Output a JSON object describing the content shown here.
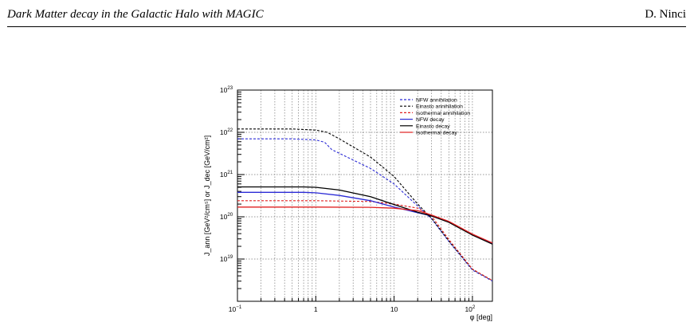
{
  "header": {
    "title": "Dark Matter decay in the Galactic Halo with MAGIC",
    "author": "D. Ninci"
  },
  "chart_data": {
    "type": "line",
    "title": "",
    "xlabel": "φ [deg]",
    "ylabel": "J_ann [GeV²/cm⁵] or J_dec [GeV/cm²]",
    "xscale": "log",
    "yscale": "log",
    "xlim": [
      0.1,
      180
    ],
    "ylim": [
      1e+18,
      1e+23
    ],
    "grid": true,
    "legend_position": "top-right",
    "x_tick_labels": [
      {
        "value": 0.1,
        "base": "10",
        "exp": "−1"
      },
      {
        "value": 1,
        "base": "1",
        "exp": ""
      },
      {
        "value": 10,
        "base": "10",
        "exp": ""
      },
      {
        "value": 100,
        "base": "10",
        "exp": "2"
      }
    ],
    "y_tick_labels": [
      {
        "value": 1e+19,
        "base": "10",
        "exp": "19"
      },
      {
        "value": 1e+20,
        "base": "10",
        "exp": "20"
      },
      {
        "value": 1e+21,
        "base": "10",
        "exp": "21"
      },
      {
        "value": 1e+22,
        "base": "10",
        "exp": "22"
      },
      {
        "value": 1e+23,
        "base": "10",
        "exp": "23"
      }
    ],
    "series": [
      {
        "name": "NFW annihilation",
        "color": "#2b2bd6",
        "dash": true,
        "points": [
          [
            0.1,
            7e+21
          ],
          [
            0.5,
            7e+21
          ],
          [
            1.0,
            6.6e+21
          ],
          [
            1.3,
            5.8e+21
          ],
          [
            1.6,
            3.9e+21
          ],
          [
            2.5,
            2.6e+21
          ],
          [
            5,
            1.4e+21
          ],
          [
            10,
            6e+20
          ],
          [
            20,
            1.8e+20
          ],
          [
            30,
            9e+19
          ],
          [
            50,
            2.6e+19
          ],
          [
            100,
            5.5e+18
          ],
          [
            180,
            3e+18
          ]
        ]
      },
      {
        "name": "Einasto annihilation",
        "color": "#000000",
        "dash": true,
        "points": [
          [
            0.1,
            1.2e+22
          ],
          [
            0.5,
            1.2e+22
          ],
          [
            1.0,
            1.13e+22
          ],
          [
            1.4,
            1e+22
          ],
          [
            2,
            7e+21
          ],
          [
            5,
            2.6e+21
          ],
          [
            10,
            9e+20
          ],
          [
            20,
            2e+20
          ],
          [
            30,
            9.3e+19
          ],
          [
            50,
            2.7e+19
          ],
          [
            100,
            5.7e+18
          ],
          [
            180,
            3.1e+18
          ]
        ]
      },
      {
        "name": "Isothermal annihilation",
        "color": "#e02020",
        "dash": true,
        "points": [
          [
            0.1,
            2.4e+20
          ],
          [
            1,
            2.4e+20
          ],
          [
            5,
            2.3e+20
          ],
          [
            10,
            2e+20
          ],
          [
            20,
            1.6e+20
          ],
          [
            30,
            1.05e+20
          ],
          [
            50,
            2.9e+19
          ],
          [
            100,
            5.8e+18
          ],
          [
            180,
            3.1e+18
          ]
        ]
      },
      {
        "name": "NFW decay",
        "color": "#2b2bd6",
        "dash": false,
        "points": [
          [
            0.1,
            3.8e+20
          ],
          [
            0.7,
            3.8e+20
          ],
          [
            1,
            3.7e+20
          ],
          [
            2,
            3.2e+20
          ],
          [
            5,
            2.4e+20
          ],
          [
            10,
            1.7e+20
          ],
          [
            20,
            1.25e+20
          ],
          [
            30,
            1.05e+20
          ],
          [
            50,
            7.5e+19
          ],
          [
            100,
            3.8e+19
          ],
          [
            180,
            2.3e+19
          ]
        ]
      },
      {
        "name": "Einasto decay",
        "color": "#000000",
        "dash": false,
        "points": [
          [
            0.1,
            5.1e+20
          ],
          [
            0.7,
            5.1e+20
          ],
          [
            1,
            5e+20
          ],
          [
            2,
            4.3e+20
          ],
          [
            5,
            3e+20
          ],
          [
            10,
            1.95e+20
          ],
          [
            20,
            1.28e+20
          ],
          [
            30,
            1.05e+20
          ],
          [
            50,
            7.4e+19
          ],
          [
            100,
            3.7e+19
          ],
          [
            180,
            2.25e+19
          ]
        ]
      },
      {
        "name": "Isothermal decay",
        "color": "#e02020",
        "dash": false,
        "points": [
          [
            0.1,
            1.7e+20
          ],
          [
            1,
            1.7e+20
          ],
          [
            5,
            1.68e+20
          ],
          [
            10,
            1.6e+20
          ],
          [
            20,
            1.4e+20
          ],
          [
            30,
            1.1e+20
          ],
          [
            50,
            7.8e+19
          ],
          [
            100,
            3.9e+19
          ],
          [
            180,
            2.4e+19
          ]
        ]
      }
    ]
  }
}
